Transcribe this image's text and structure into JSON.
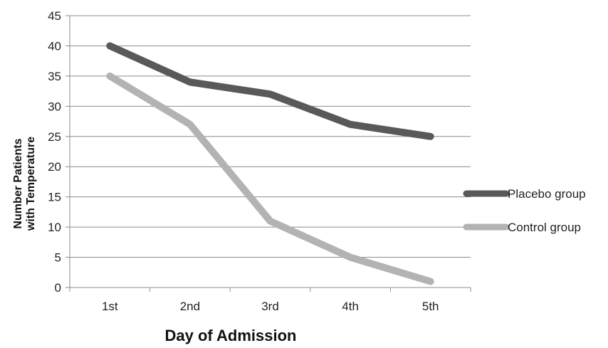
{
  "chart_data": {
    "type": "line",
    "categories": [
      "1st",
      "2nd",
      "3rd",
      "4th",
      "5th"
    ],
    "series": [
      {
        "name": "Placebo group",
        "values": [
          40,
          34,
          32,
          27,
          25
        ],
        "color": "#595959"
      },
      {
        "name": "Control group",
        "values": [
          35,
          27,
          11,
          5,
          1
        ],
        "color": "#b3b3b3"
      }
    ],
    "ylim": [
      0,
      45
    ],
    "yticks": [
      "0",
      "5",
      "10",
      "15",
      "20",
      "25",
      "30",
      "35",
      "40",
      "45"
    ],
    "xlabel": "Day of Admission",
    "ylabel_line1": "Number Patients",
    "ylabel_line2": "with Temperature",
    "grid": "horizontal",
    "legend_position": "right"
  }
}
